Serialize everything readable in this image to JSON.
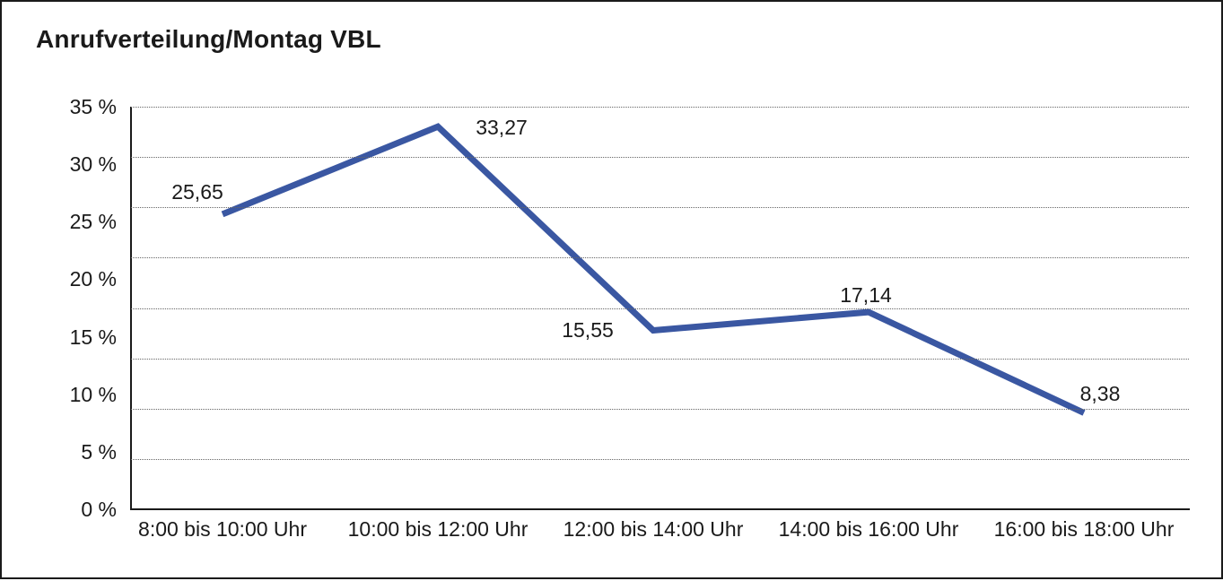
{
  "frame": {
    "background": "#ffffff",
    "border_color": "#1a1a1a"
  },
  "chart_data": {
    "type": "line",
    "title": "Anrufverteilung/Montag VBL",
    "categories": [
      "8:00 bis 10:00 Uhr",
      "10:00 bis 12:00 Uhr",
      "12:00 bis 14:00 Uhr",
      "14:00 bis 16:00 Uhr",
      "16:00 bis 18:00 Uhr"
    ],
    "values": [
      25.65,
      33.27,
      15.55,
      17.14,
      8.38
    ],
    "value_labels": [
      "25,65",
      "33,27",
      "15,55",
      "17,14",
      "8,38"
    ],
    "unit": "%",
    "y_ticks": [
      {
        "label": "35 %",
        "value": 35
      },
      {
        "label": "30 %",
        "value": 30
      },
      {
        "label": "25 %",
        "value": 25
      },
      {
        "label": "20 %",
        "value": 20
      },
      {
        "label": "15 %",
        "value": 15
      },
      {
        "label": "10 %",
        "value": 10
      },
      {
        "label": "5 %",
        "value": 5
      },
      {
        "label": "0 %",
        "value": 0
      }
    ],
    "ylim": [
      0,
      35
    ],
    "xlabel": "",
    "ylabel": "",
    "legend": "none",
    "grid": {
      "horizontal_divisions": 8,
      "style": "dotted"
    },
    "line_color": "#3a57a2",
    "text_color": "#1a1a1a"
  }
}
